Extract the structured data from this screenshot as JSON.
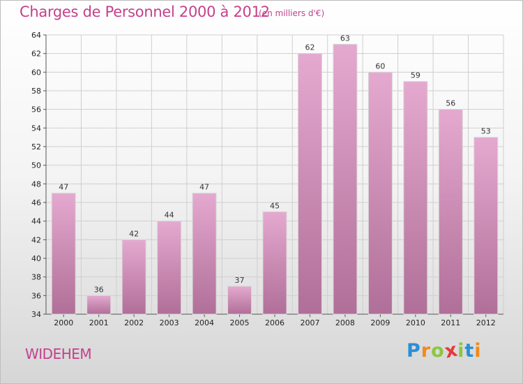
{
  "header": {
    "title": "Charges de Personnel 2000 à 2012",
    "subtitle": "(en milliers d'€)"
  },
  "footer": {
    "commune": "WIDEHEM",
    "logo_letters": [
      "P",
      "r",
      "o",
      "x",
      "i",
      "t",
      "i"
    ],
    "logo_colors": [
      "#2b8fd6",
      "#f08a1c",
      "#8cc63f",
      "#e63a3a",
      "#8cc63f",
      "#2b8fd6",
      "#f08a1c"
    ]
  },
  "colors": {
    "bar_top": "#e5a9d0",
    "bar_bottom": "#b06f98",
    "bar_edge": "#d8d8d8",
    "grid": "#cfcfcf",
    "accent": "#c5408c"
  },
  "chart_data": {
    "type": "bar",
    "title": "Charges de Personnel 2000 à 2012",
    "subtitle": "(en milliers d'€)",
    "categories": [
      "2000",
      "2001",
      "2002",
      "2003",
      "2004",
      "2005",
      "2006",
      "2007",
      "2008",
      "2009",
      "2010",
      "2011",
      "2012"
    ],
    "values": [
      47,
      36,
      42,
      44,
      47,
      37,
      45,
      62,
      63,
      60,
      59,
      56,
      53
    ],
    "ylim": [
      34,
      64
    ],
    "yticks": [
      34,
      36,
      38,
      40,
      42,
      44,
      46,
      48,
      50,
      52,
      54,
      56,
      58,
      60,
      62,
      64
    ],
    "grid": true,
    "legend": "none"
  }
}
